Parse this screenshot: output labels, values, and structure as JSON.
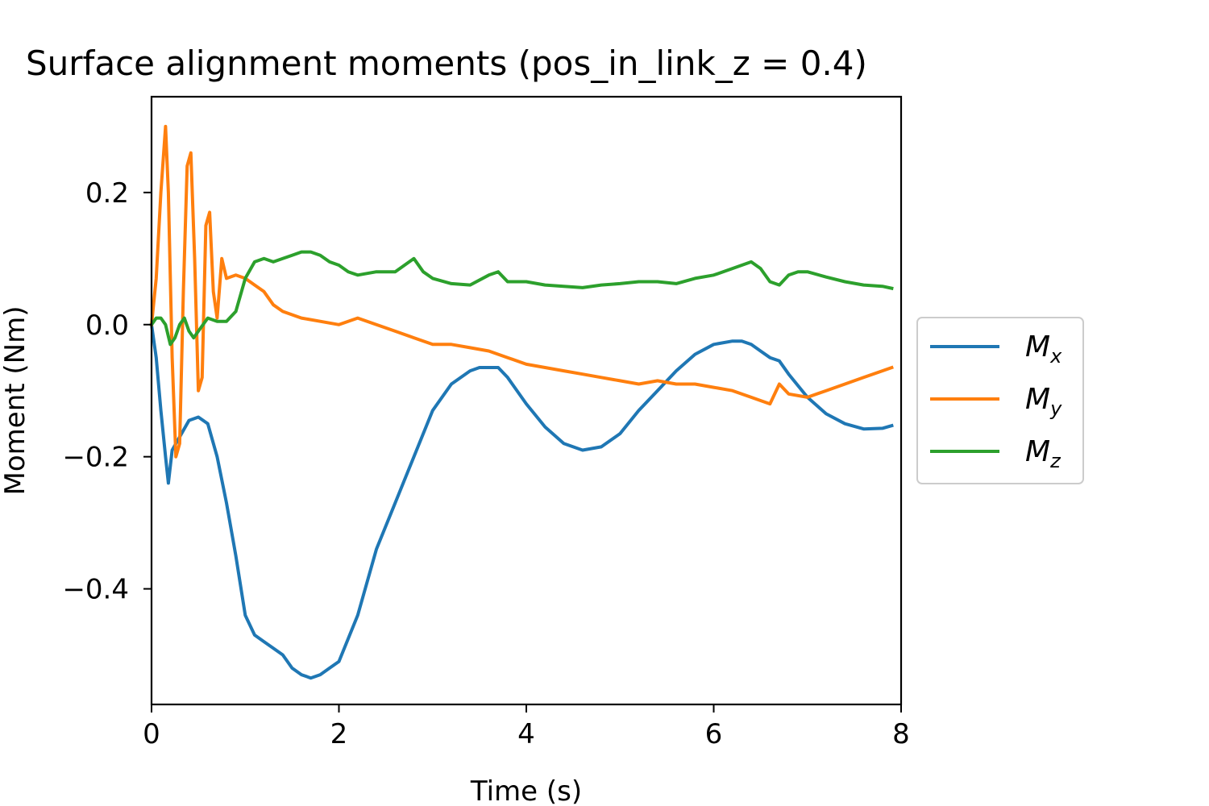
{
  "chart_data": {
    "type": "line",
    "title": "Surface alignment moments (pos_in_link_z = 0.4)",
    "xlabel": "Time (s)",
    "ylabel": "Moment (Nm)",
    "xlim": [
      0,
      8
    ],
    "ylim": [
      -0.575,
      0.345
    ],
    "xticks": [
      0,
      2,
      4,
      6,
      8
    ],
    "xtick_labels": [
      "0",
      "2",
      "4",
      "6",
      "8"
    ],
    "yticks": [
      0.2,
      0.0,
      -0.2,
      -0.4
    ],
    "ytick_labels": [
      "0.2",
      "0.0",
      "−0.2",
      "−0.4"
    ],
    "grid": false,
    "legend_position": "outside-right",
    "series": [
      {
        "name": "M",
        "sub": "x",
        "color": "#1f77b4",
        "x": [
          0.0,
          0.05,
          0.1,
          0.15,
          0.18,
          0.22,
          0.3,
          0.4,
          0.5,
          0.6,
          0.7,
          0.8,
          0.9,
          1.0,
          1.1,
          1.2,
          1.3,
          1.4,
          1.5,
          1.6,
          1.7,
          1.8,
          1.9,
          2.0,
          2.2,
          2.4,
          2.6,
          2.8,
          3.0,
          3.2,
          3.4,
          3.5,
          3.6,
          3.7,
          3.8,
          4.0,
          4.2,
          4.4,
          4.6,
          4.8,
          5.0,
          5.2,
          5.4,
          5.6,
          5.8,
          6.0,
          6.2,
          6.3,
          6.4,
          6.5,
          6.6,
          6.7,
          6.8,
          7.0,
          7.2,
          7.4,
          7.6,
          7.8,
          7.9
        ],
        "values": [
          0.0,
          -0.05,
          -0.13,
          -0.2,
          -0.24,
          -0.19,
          -0.17,
          -0.145,
          -0.14,
          -0.15,
          -0.2,
          -0.27,
          -0.35,
          -0.44,
          -0.47,
          -0.48,
          -0.49,
          -0.5,
          -0.52,
          -0.53,
          -0.535,
          -0.53,
          -0.52,
          -0.51,
          -0.44,
          -0.34,
          -0.27,
          -0.2,
          -0.13,
          -0.09,
          -0.07,
          -0.065,
          -0.065,
          -0.065,
          -0.08,
          -0.12,
          -0.155,
          -0.18,
          -0.19,
          -0.185,
          -0.165,
          -0.13,
          -0.1,
          -0.07,
          -0.045,
          -0.03,
          -0.025,
          -0.025,
          -0.03,
          -0.04,
          -0.05,
          -0.055,
          -0.075,
          -0.11,
          -0.135,
          -0.15,
          -0.158,
          -0.157,
          -0.153
        ]
      },
      {
        "name": "M",
        "sub": "y",
        "color": "#ff7f0e",
        "x": [
          0.0,
          0.05,
          0.1,
          0.15,
          0.18,
          0.22,
          0.26,
          0.3,
          0.34,
          0.38,
          0.42,
          0.46,
          0.5,
          0.54,
          0.58,
          0.62,
          0.66,
          0.7,
          0.75,
          0.8,
          0.9,
          1.0,
          1.1,
          1.2,
          1.3,
          1.4,
          1.6,
          1.8,
          2.0,
          2.2,
          2.4,
          2.6,
          2.8,
          3.0,
          3.2,
          3.4,
          3.6,
          3.8,
          4.0,
          4.2,
          4.4,
          4.6,
          4.8,
          5.0,
          5.2,
          5.4,
          5.6,
          5.8,
          6.0,
          6.2,
          6.4,
          6.5,
          6.6,
          6.7,
          6.8,
          7.0,
          7.2,
          7.4,
          7.6,
          7.8,
          7.9
        ],
        "values": [
          0.0,
          0.07,
          0.2,
          0.3,
          0.2,
          -0.05,
          -0.2,
          -0.18,
          0.05,
          0.24,
          0.26,
          0.1,
          -0.1,
          -0.08,
          0.15,
          0.17,
          0.05,
          0.01,
          0.1,
          0.07,
          0.075,
          0.07,
          0.06,
          0.05,
          0.03,
          0.02,
          0.01,
          0.005,
          0.0,
          0.01,
          0.0,
          -0.01,
          -0.02,
          -0.03,
          -0.03,
          -0.035,
          -0.04,
          -0.05,
          -0.06,
          -0.065,
          -0.07,
          -0.075,
          -0.08,
          -0.085,
          -0.09,
          -0.085,
          -0.09,
          -0.09,
          -0.095,
          -0.1,
          -0.11,
          -0.115,
          -0.12,
          -0.09,
          -0.105,
          -0.11,
          -0.1,
          -0.09,
          -0.08,
          -0.07,
          -0.065
        ]
      },
      {
        "name": "M",
        "sub": "z",
        "color": "#2ca02c",
        "x": [
          0.0,
          0.05,
          0.1,
          0.15,
          0.2,
          0.25,
          0.3,
          0.35,
          0.4,
          0.45,
          0.5,
          0.55,
          0.6,
          0.7,
          0.8,
          0.9,
          1.0,
          1.1,
          1.2,
          1.3,
          1.4,
          1.5,
          1.6,
          1.7,
          1.8,
          1.9,
          2.0,
          2.1,
          2.2,
          2.4,
          2.6,
          2.7,
          2.8,
          2.9,
          3.0,
          3.2,
          3.4,
          3.6,
          3.7,
          3.8,
          4.0,
          4.2,
          4.4,
          4.6,
          4.8,
          5.0,
          5.2,
          5.4,
          5.6,
          5.8,
          6.0,
          6.2,
          6.3,
          6.4,
          6.5,
          6.6,
          6.7,
          6.8,
          6.9,
          7.0,
          7.2,
          7.4,
          7.6,
          7.8,
          7.9
        ],
        "values": [
          0.0,
          0.01,
          0.01,
          0.0,
          -0.03,
          -0.02,
          0.0,
          0.01,
          -0.01,
          -0.02,
          -0.01,
          0.0,
          0.01,
          0.005,
          0.005,
          0.02,
          0.07,
          0.095,
          0.1,
          0.095,
          0.1,
          0.105,
          0.11,
          0.11,
          0.105,
          0.095,
          0.09,
          0.08,
          0.075,
          0.08,
          0.08,
          0.09,
          0.1,
          0.08,
          0.07,
          0.062,
          0.06,
          0.075,
          0.08,
          0.065,
          0.065,
          0.06,
          0.058,
          0.056,
          0.06,
          0.062,
          0.065,
          0.065,
          0.062,
          0.07,
          0.075,
          0.085,
          0.09,
          0.095,
          0.085,
          0.065,
          0.06,
          0.075,
          0.08,
          0.08,
          0.072,
          0.065,
          0.06,
          0.058,
          0.055
        ]
      }
    ]
  }
}
